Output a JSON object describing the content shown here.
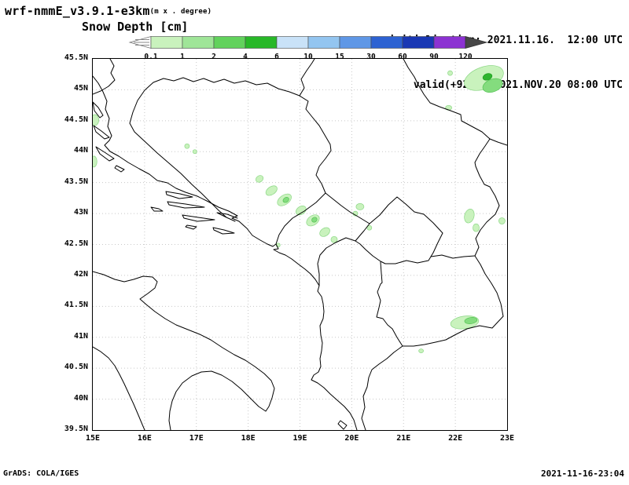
{
  "header": {
    "model": "wrf-nmmE_v3.9.1-e3km",
    "model_units": "(m x . degree)",
    "field_title": "Snow Depth [cm]",
    "init_line": "initialisation: 2021.11.16.  12:00 UTC",
    "valid_line": "valid(+92h): 2021.NOV.20 08:00 UTC"
  },
  "colorbar": {
    "tick_labels": [
      "0.1",
      "1",
      "2",
      "4",
      "6",
      "10",
      "15",
      "30",
      "60",
      "90",
      "120"
    ],
    "segment_colors": [
      "#c9f2bd",
      "#9fe598",
      "#62d25c",
      "#28b828",
      "#c9e2f8",
      "#93c5f0",
      "#5f97e6",
      "#2d62d2",
      "#1a38b4",
      "#8c32d2"
    ],
    "under_arrow_color": "#ffffff",
    "over_arrow_color": "#474747"
  },
  "map_axes": {
    "lat_labels": [
      "45.5N",
      "45N",
      "44.5N",
      "44N",
      "43.5N",
      "43N",
      "42.5N",
      "42N",
      "41.5N",
      "41N",
      "40.5N",
      "40N",
      "39.5N"
    ],
    "lon_labels": [
      "15E",
      "16E",
      "17E",
      "18E",
      "19E",
      "20E",
      "21E",
      "22E",
      "23E"
    ]
  },
  "footer": {
    "left": "GrADS: COLA/IGES",
    "right": "2021-11-16-23:04"
  },
  "colors": {
    "snow_light": "#c9f2bd",
    "snow_light_edge": "#8cd786",
    "snow_mid": "#84dc7e",
    "snow_mid_edge": "#54c354",
    "snow_dark": "#2fb42f",
    "snow_dark_edge": "#1f9e1f",
    "gridline": "#c8c8c8",
    "coastline": "#000000"
  },
  "chart_data": {
    "type": "heatmap",
    "title": "Snow Depth [cm]",
    "model": "wrf-nmmE_v3.9.1-e3km",
    "initialisation": "2021.11.16. 12:00 UTC",
    "valid": "2021.NOV.20 08:00 UTC",
    "forecast_hour": "+92h",
    "lon_range_deg_e": [
      15,
      23
    ],
    "lat_range_deg_n": [
      39.5,
      45.5
    ],
    "contour_levels_cm": [
      0.1,
      1,
      2,
      4,
      6,
      10,
      15,
      30,
      60,
      90,
      120
    ],
    "snow_patches": [
      {
        "lon": 22.55,
        "lat": 45.19,
        "rx": 26,
        "ry": 14,
        "rot": -20,
        "level": "light"
      },
      {
        "lon": 22.72,
        "lat": 45.07,
        "rx": 13,
        "ry": 8,
        "rot": -20,
        "level": "mid"
      },
      {
        "lon": 22.62,
        "lat": 45.21,
        "rx": 6,
        "ry": 4,
        "rot": -20,
        "level": "dark"
      },
      {
        "lon": 21.9,
        "lat": 45.27,
        "rx": 3,
        "ry": 3,
        "rot": 0,
        "level": "light"
      },
      {
        "lon": 21.87,
        "lat": 44.71,
        "rx": 4,
        "ry": 3,
        "rot": 0,
        "level": "light"
      },
      {
        "lon": 15.04,
        "lat": 44.51,
        "rx": 5,
        "ry": 7,
        "rot": 0,
        "level": "light"
      },
      {
        "lon": 15.02,
        "lat": 43.84,
        "rx": 4,
        "ry": 7,
        "rot": 0,
        "level": "light"
      },
      {
        "lon": 16.82,
        "lat": 44.09,
        "rx": 3,
        "ry": 3,
        "rot": 0,
        "level": "light"
      },
      {
        "lon": 16.97,
        "lat": 44.0,
        "rx": 2.5,
        "ry": 2.5,
        "rot": 0,
        "level": "light"
      },
      {
        "lon": 18.22,
        "lat": 43.56,
        "rx": 5,
        "ry": 4,
        "rot": -35,
        "level": "light"
      },
      {
        "lon": 18.45,
        "lat": 43.37,
        "rx": 8,
        "ry": 5,
        "rot": -35,
        "level": "light"
      },
      {
        "lon": 18.7,
        "lat": 43.22,
        "rx": 10,
        "ry": 6,
        "rot": -35,
        "level": "light"
      },
      {
        "lon": 18.73,
        "lat": 43.22,
        "rx": 4,
        "ry": 3,
        "rot": -35,
        "level": "mid"
      },
      {
        "lon": 19.02,
        "lat": 43.05,
        "rx": 7,
        "ry": 5,
        "rot": -35,
        "level": "light"
      },
      {
        "lon": 19.25,
        "lat": 42.89,
        "rx": 9,
        "ry": 6,
        "rot": -35,
        "level": "light"
      },
      {
        "lon": 19.28,
        "lat": 42.9,
        "rx": 3.5,
        "ry": 3,
        "rot": -35,
        "level": "mid"
      },
      {
        "lon": 19.48,
        "lat": 42.7,
        "rx": 7,
        "ry": 5,
        "rot": -35,
        "level": "light"
      },
      {
        "lon": 19.66,
        "lat": 42.58,
        "rx": 4,
        "ry": 4,
        "rot": 0,
        "level": "light"
      },
      {
        "lon": 20.16,
        "lat": 43.11,
        "rx": 5,
        "ry": 4,
        "rot": 0,
        "level": "light"
      },
      {
        "lon": 20.07,
        "lat": 43.0,
        "rx": 3,
        "ry": 3,
        "rot": 0,
        "level": "light"
      },
      {
        "lon": 20.34,
        "lat": 42.77,
        "rx": 3,
        "ry": 3,
        "rot": 0,
        "level": "light"
      },
      {
        "lon": 22.27,
        "lat": 42.96,
        "rx": 6,
        "ry": 9,
        "rot": 15,
        "level": "light"
      },
      {
        "lon": 22.4,
        "lat": 42.77,
        "rx": 4,
        "ry": 5,
        "rot": 0,
        "level": "light"
      },
      {
        "lon": 22.9,
        "lat": 42.88,
        "rx": 4,
        "ry": 4,
        "rot": 0,
        "level": "light"
      },
      {
        "lon": 22.18,
        "lat": 41.24,
        "rx": 18,
        "ry": 8,
        "rot": -8,
        "level": "light"
      },
      {
        "lon": 22.3,
        "lat": 41.27,
        "rx": 8,
        "ry": 4,
        "rot": -8,
        "level": "mid"
      },
      {
        "lon": 18.58,
        "lat": 42.49,
        "rx": 2.5,
        "ry": 2.5,
        "rot": 0,
        "level": "light"
      },
      {
        "lon": 21.34,
        "lat": 40.78,
        "rx": 3,
        "ry": 2.5,
        "rot": 0,
        "level": "light"
      }
    ]
  }
}
